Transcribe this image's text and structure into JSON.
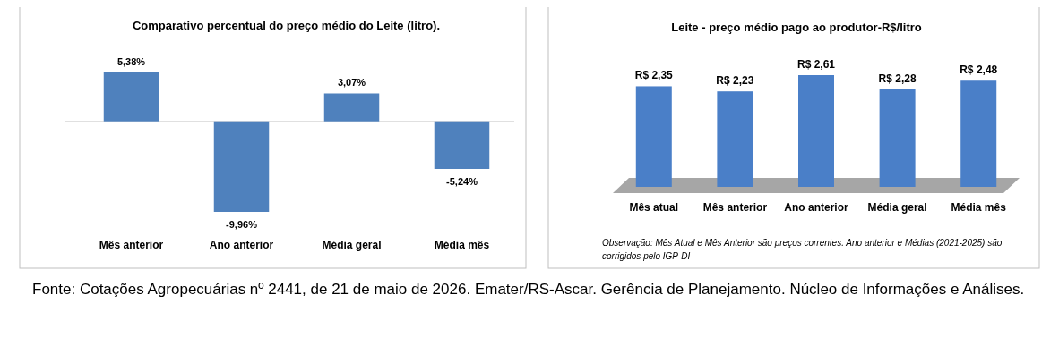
{
  "chart_data": [
    {
      "type": "bar",
      "title": "Comparativo percentual do preço médio do Leite (litro).",
      "categories": [
        "Mês anterior",
        "Ano anterior",
        "Média geral",
        "Média mês"
      ],
      "values": [
        5.38,
        -9.96,
        3.07,
        -5.24
      ],
      "value_labels": [
        "5,38%",
        "-9,96%",
        "3,07%",
        "-5,24%"
      ],
      "color": "#4f81bd",
      "tick_labels": "x",
      "annotations": [
        "Fonte: Cotações Agropecuárias nº 2441, de 21 de maio de 2026. Emater/RS-Ascar. Gerência de Planejamento. Núcleo de Informações e Análises."
      ]
    },
    {
      "type": "bar",
      "title": "Leite - preço médio pago ao produtor-R$/litro",
      "categories": [
        "Mês atual",
        "Mês anterior",
        "Ano anterior",
        "Média geral",
        "Média mês"
      ],
      "values": [
        2.35,
        2.23,
        2.61,
        2.28,
        2.48
      ],
      "value_labels": [
        "R$ 2,35",
        "R$ 2,23",
        "R$ 2,61",
        "R$ 2,28",
        "R$ 2,48"
      ],
      "color": "#4a7fc8",
      "tick_labels": "x",
      "annotations": [
        "Observação: Mês Atual e Mês Anterior são preços correntes. Ano anterior e Médias (2021-2025) são corrigidos pelo IGP-DI"
      ]
    }
  ]
}
